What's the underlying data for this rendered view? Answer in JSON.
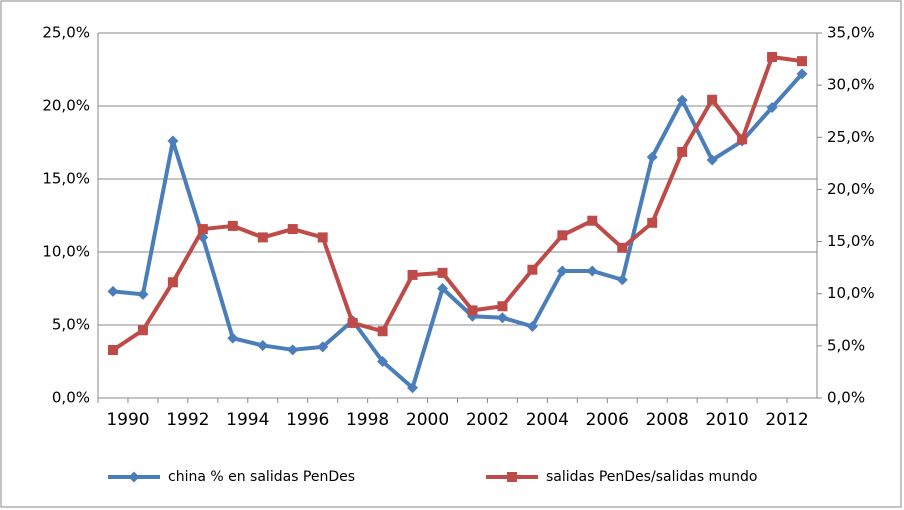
{
  "chart_data": {
    "type": "line",
    "categories": [
      "1990",
      null,
      "1992",
      null,
      "1994",
      null,
      "1996",
      null,
      "1998",
      null,
      "2000",
      null,
      "2002",
      null,
      "2004",
      null,
      "2006",
      null,
      "2008",
      null,
      "2010",
      null,
      "2012",
      null
    ],
    "series": [
      {
        "name": "china % en salidas PenDes",
        "color": "#4a7ebb",
        "marker": "diamond",
        "values": [
          7.3,
          7.1,
          17.6,
          11.0,
          4.1,
          3.6,
          3.3,
          3.5,
          5.3,
          2.5,
          0.7,
          7.5,
          5.6,
          5.5,
          4.9,
          8.7,
          8.7,
          8.1,
          16.5,
          20.4,
          16.3,
          17.6,
          19.9,
          22.2
        ]
      },
      {
        "name": "salidas PenDes/salidas mundo",
        "color": "#be4b48",
        "marker": "square",
        "axis": "y2",
        "values": [
          4.6,
          6.5,
          11.1,
          16.2,
          16.5,
          15.4,
          16.2,
          15.4,
          7.2,
          6.4,
          11.8,
          12.0,
          8.4,
          8.8,
          12.3,
          15.6,
          17.0,
          14.4,
          16.8,
          23.6,
          28.6,
          24.8,
          32.7,
          32.3
        ]
      }
    ],
    "ylim": [
      0,
      25
    ],
    "yticks": [
      {
        "value": 0,
        "label": "0,0%"
      },
      {
        "value": 5,
        "label": "5,0%"
      },
      {
        "value": 10,
        "label": "10,0%"
      },
      {
        "value": 15,
        "label": "15,0%"
      },
      {
        "value": 20,
        "label": "20,0%"
      },
      {
        "value": 25,
        "label": "25,0%"
      }
    ],
    "y2lim": [
      0,
      35
    ],
    "y2ticks": [
      {
        "value": 0,
        "label": "0,0%"
      },
      {
        "value": 5,
        "label": "5,0%"
      },
      {
        "value": 10,
        "label": "10,0%"
      },
      {
        "value": 15,
        "label": "15,0%"
      },
      {
        "value": 20,
        "label": "20,0%"
      },
      {
        "value": 25,
        "label": "25,0%"
      },
      {
        "value": 30,
        "label": "30,0%"
      },
      {
        "value": 35,
        "label": "35,0%"
      }
    ],
    "grid": true,
    "legend": "bottom"
  }
}
